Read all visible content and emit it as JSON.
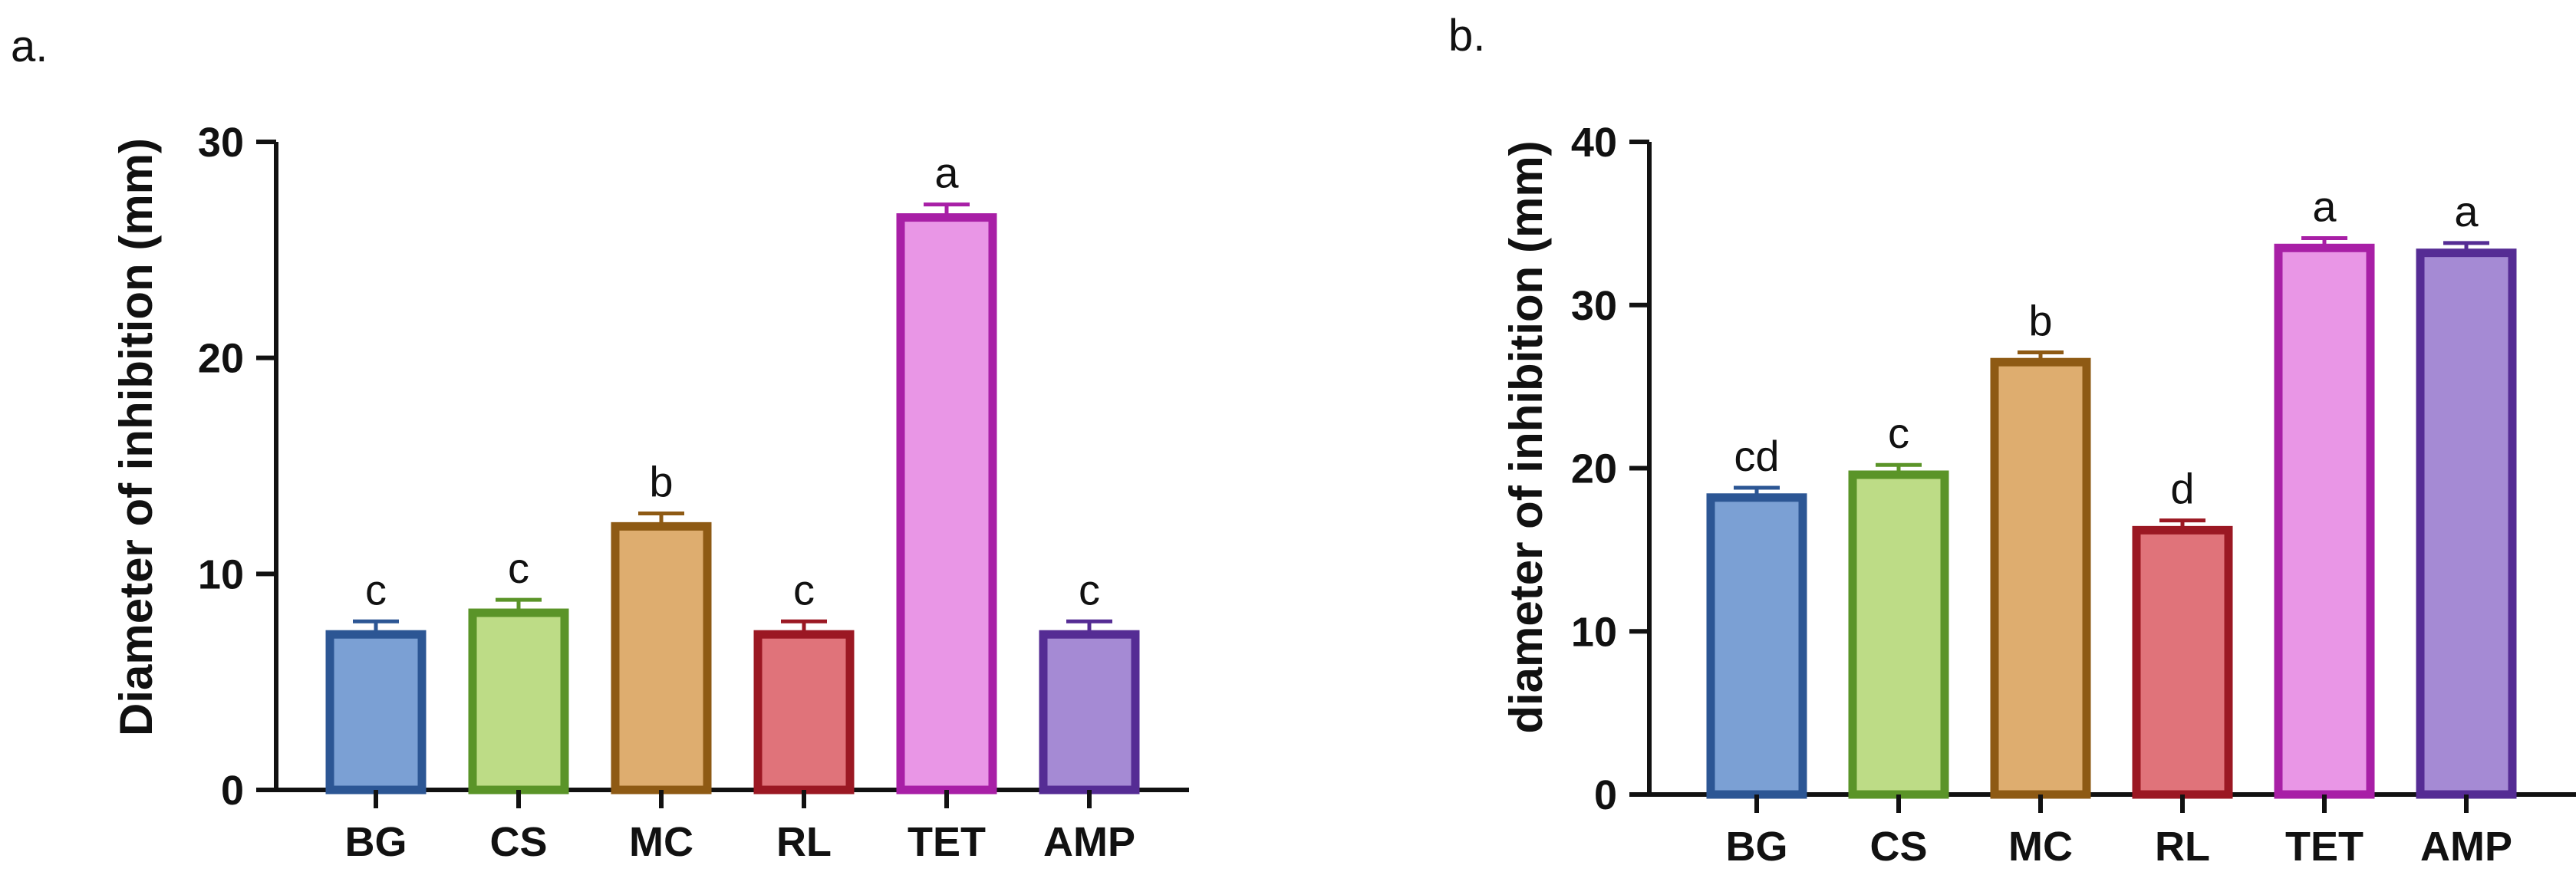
{
  "chart_data": [
    {
      "panel": "a.",
      "type": "bar",
      "categories": [
        "BG",
        "CS",
        "MC",
        "RL",
        "TET",
        "AMP"
      ],
      "values": [
        7.2,
        8.2,
        12.2,
        7.2,
        26.5,
        7.2
      ],
      "errors": [
        0.6,
        0.6,
        0.6,
        0.6,
        0.6,
        0.6
      ],
      "significance": [
        "c",
        "c",
        "b",
        "c",
        "a",
        "c"
      ],
      "ylabel": "Diameter of inhibition (mm)",
      "xlabel": "",
      "ylim": [
        0,
        30
      ],
      "yticks": [
        0,
        10,
        20,
        30
      ],
      "colors": {
        "fill": [
          "#7BA0D4",
          "#BDDC86",
          "#DEAD6F",
          "#E0737A",
          "#E996E6",
          "#A58AD4"
        ],
        "stroke": [
          "#2C5694",
          "#5A9428",
          "#8E5A14",
          "#9B1823",
          "#A81FA6",
          "#552C94"
        ]
      }
    },
    {
      "panel": "b.",
      "type": "bar",
      "categories": [
        "BG",
        "CS",
        "MC",
        "RL",
        "TET",
        "AMP"
      ],
      "values": [
        18.2,
        19.6,
        26.5,
        16.2,
        33.5,
        33.2
      ],
      "errors": [
        0.6,
        0.6,
        0.6,
        0.6,
        0.6,
        0.6
      ],
      "significance": [
        "cd",
        "c",
        "b",
        "d",
        "a",
        "a"
      ],
      "ylabel": "diameter of inhibition (mm)",
      "xlabel": "",
      "ylim": [
        0,
        40
      ],
      "yticks": [
        0,
        10,
        20,
        30,
        40
      ],
      "colors": {
        "fill": [
          "#7BA0D4",
          "#BDDC86",
          "#DEAD6F",
          "#E0737A",
          "#E996E6",
          "#A58AD4"
        ],
        "stroke": [
          "#2C5694",
          "#5A9428",
          "#8E5A14",
          "#9B1823",
          "#A81FA6",
          "#552C94"
        ]
      }
    }
  ]
}
